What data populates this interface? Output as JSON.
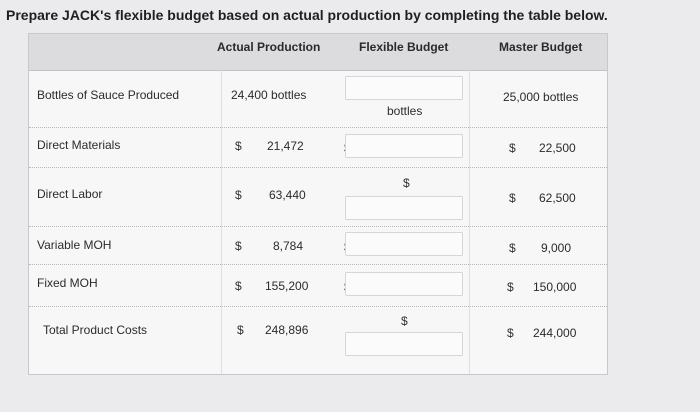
{
  "heading": "Prepare JACK's flexible budget based on actual production by completing the table below.",
  "columns": {
    "actual": "Actual Production",
    "flexible": "Flexible Budget",
    "master": "Master Budget"
  },
  "rows": {
    "bottles": {
      "label": "Bottles of Sauce Produced",
      "actual": "24,400 bottles",
      "flexible_unit": "bottles",
      "master": "25,000 bottles"
    },
    "materials": {
      "label": "Direct Materials",
      "actual_sym": "$",
      "actual": "21,472",
      "flex_sym": "$",
      "master_sym": "$",
      "master": "22,500"
    },
    "labor": {
      "label": "Direct Labor",
      "actual_sym": "$",
      "actual": "63,440",
      "flex_sym": "$",
      "master_sym": "$",
      "master": "62,500"
    },
    "vmoh": {
      "label": "Variable MOH",
      "actual_sym": "$",
      "actual": "8,784",
      "flex_sym": "$",
      "master_sym": "$",
      "master": "9,000"
    },
    "fmoh": {
      "label": "Fixed MOH",
      "actual_sym": "$",
      "actual": "155,200",
      "flex_sym": "$",
      "master_sym": "$",
      "master": "150,000"
    },
    "total": {
      "label": "Total Product Costs",
      "actual_sym": "$",
      "actual": "248,896",
      "flex_sym": "$",
      "master_sym": "$",
      "master": "244,000"
    }
  },
  "inputs": {
    "bottles": "",
    "materials": "",
    "labor": "",
    "vmoh": "",
    "fmoh": "",
    "total": ""
  }
}
